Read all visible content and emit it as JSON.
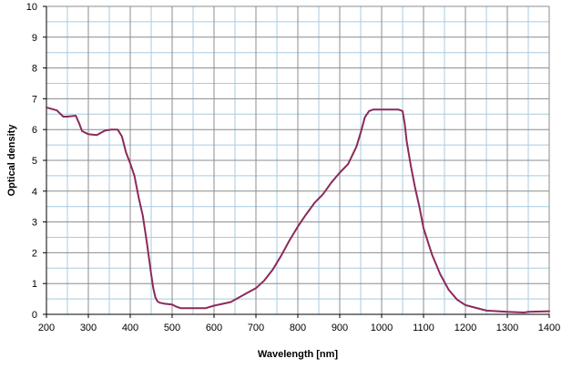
{
  "chart_data": {
    "type": "line",
    "title": "",
    "xlabel": "Wavelength [nm]",
    "ylabel": "Optical density",
    "xlim": [
      200,
      1400
    ],
    "ylim": [
      0,
      10
    ],
    "x_major_ticks": [
      200,
      300,
      400,
      500,
      600,
      700,
      800,
      900,
      1000,
      1100,
      1200,
      1300,
      1400
    ],
    "x_minor_step": 50,
    "y_ticks": [
      0,
      1,
      2,
      3,
      4,
      5,
      6,
      7,
      8,
      9,
      10
    ],
    "y_minor_step": 0.5,
    "grid": true,
    "legend": "none",
    "colors": {
      "line": "#8b2a5a",
      "major_grid": "#8c8c8c",
      "minor_grid": "#a8cbe0"
    },
    "series": [
      {
        "x": [
          200,
          225,
          240,
          250,
          270,
          278,
          285,
          300,
          320,
          340,
          355,
          370,
          380,
          390,
          400,
          410,
          420,
          430,
          440,
          450,
          455,
          460,
          465,
          470,
          480,
          500,
          510,
          520,
          540,
          580,
          600,
          640,
          680,
          700,
          720,
          740,
          760,
          780,
          800,
          820,
          840,
          860,
          880,
          900,
          920,
          940,
          950,
          960,
          970,
          980,
          1000,
          1020,
          1040,
          1050,
          1055,
          1060,
          1070,
          1080,
          1090,
          1100,
          1120,
          1140,
          1160,
          1180,
          1200,
          1250,
          1300,
          1340,
          1350,
          1400
        ],
        "y": [
          6.72,
          6.62,
          6.42,
          6.42,
          6.45,
          6.2,
          5.95,
          5.85,
          5.82,
          5.97,
          6.0,
          6.0,
          5.78,
          5.25,
          4.9,
          4.5,
          3.8,
          3.2,
          2.3,
          1.3,
          0.85,
          0.55,
          0.42,
          0.38,
          0.35,
          0.32,
          0.25,
          0.2,
          0.2,
          0.2,
          0.28,
          0.4,
          0.7,
          0.85,
          1.1,
          1.45,
          1.9,
          2.4,
          2.85,
          3.25,
          3.62,
          3.9,
          4.28,
          4.6,
          4.88,
          5.45,
          5.9,
          6.4,
          6.6,
          6.65,
          6.65,
          6.65,
          6.65,
          6.6,
          6.2,
          5.6,
          4.8,
          4.1,
          3.5,
          2.8,
          1.95,
          1.3,
          0.8,
          0.48,
          0.3,
          0.12,
          0.08,
          0.06,
          0.08,
          0.1
        ]
      }
    ]
  }
}
